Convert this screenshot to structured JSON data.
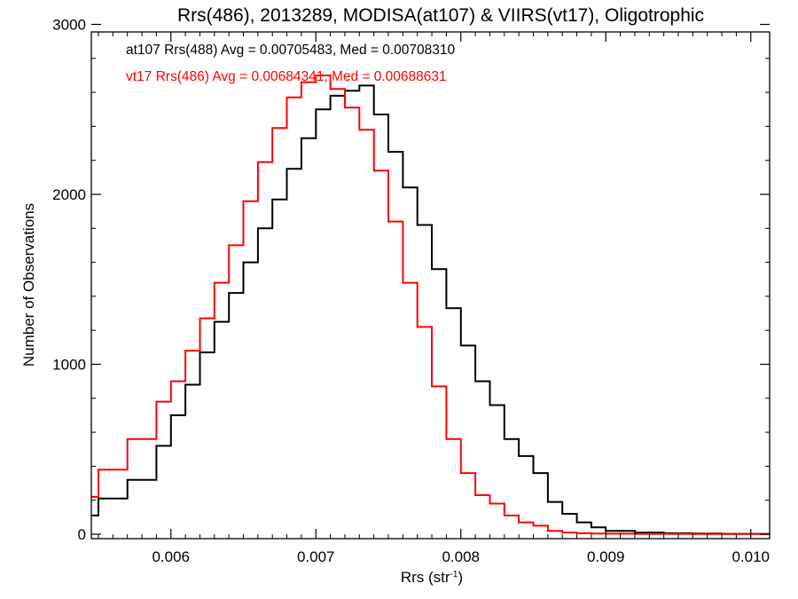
{
  "chart_data": {
    "type": "line",
    "title": "Rrs(486), 2013289, MODISA(at107) & VIIRS(vt17), Oligotrophic",
    "xlabel": "Rrs (str",
    "xlabel_sup": "-1",
    "xlabel_close": ")",
    "ylabel": "Number of Observations",
    "xlim": [
      0.0053,
      0.0101
    ],
    "ylim": [
      0,
      3000
    ],
    "x_ticks": [
      0.006,
      0.007,
      0.008,
      0.009,
      0.01
    ],
    "x_tick_labels": [
      "0.006",
      "0.007",
      "0.008",
      "0.009",
      "0.010"
    ],
    "y_ticks": [
      0,
      1000,
      2000,
      3000
    ],
    "y_tick_labels": [
      "0",
      "1000",
      "2000",
      "3000"
    ],
    "grid": false,
    "legend_placement": "top-left, inside plot",
    "series": [
      {
        "name": "at107 Rrs(488) Avg = 0.00705483, Med = 0.00708310",
        "color": "#000000",
        "x": [
          0.0053,
          0.0055,
          0.0057,
          0.0059,
          0.006,
          0.0061,
          0.0062,
          0.0063,
          0.0064,
          0.0065,
          0.0066,
          0.0067,
          0.0068,
          0.0069,
          0.007,
          0.0071,
          0.0072,
          0.0073,
          0.0074,
          0.0075,
          0.0076,
          0.0077,
          0.0078,
          0.0079,
          0.008,
          0.0081,
          0.0082,
          0.0083,
          0.0084,
          0.0085,
          0.0086,
          0.0087,
          0.0088,
          0.0089,
          0.009,
          0.0092,
          0.0094,
          0.0096,
          0.0098,
          0.0101
        ],
        "values": [
          110,
          210,
          320,
          520,
          700,
          880,
          1070,
          1250,
          1420,
          1600,
          1800,
          1970,
          2150,
          2330,
          2500,
          2580,
          2610,
          2640,
          2470,
          2250,
          2040,
          1820,
          1560,
          1330,
          1110,
          900,
          760,
          560,
          460,
          360,
          190,
          120,
          70,
          40,
          20,
          10,
          6,
          4,
          2,
          1
        ]
      },
      {
        "name": "vt17 Rrs(486) Avg = 0.00684341, Med = 0.00688631",
        "color": "#ff0000",
        "x": [
          0.0053,
          0.0055,
          0.0057,
          0.0059,
          0.006,
          0.0061,
          0.0062,
          0.0063,
          0.0064,
          0.0065,
          0.0066,
          0.0067,
          0.0068,
          0.0069,
          0.007,
          0.0071,
          0.0072,
          0.0073,
          0.0074,
          0.0075,
          0.0076,
          0.0077,
          0.0078,
          0.0079,
          0.008,
          0.0081,
          0.0082,
          0.0083,
          0.0084,
          0.0085,
          0.0086,
          0.0087,
          0.0088,
          0.0089,
          0.009,
          0.0092,
          0.0094,
          0.0096,
          0.0098,
          0.0101
        ],
        "values": [
          220,
          380,
          560,
          780,
          900,
          1080,
          1270,
          1480,
          1700,
          1960,
          2190,
          2390,
          2570,
          2660,
          2700,
          2620,
          2510,
          2380,
          2140,
          1840,
          1480,
          1220,
          870,
          560,
          360,
          230,
          180,
          110,
          70,
          50,
          20,
          10,
          6,
          4,
          3,
          2,
          2,
          1,
          1,
          0
        ]
      }
    ]
  }
}
